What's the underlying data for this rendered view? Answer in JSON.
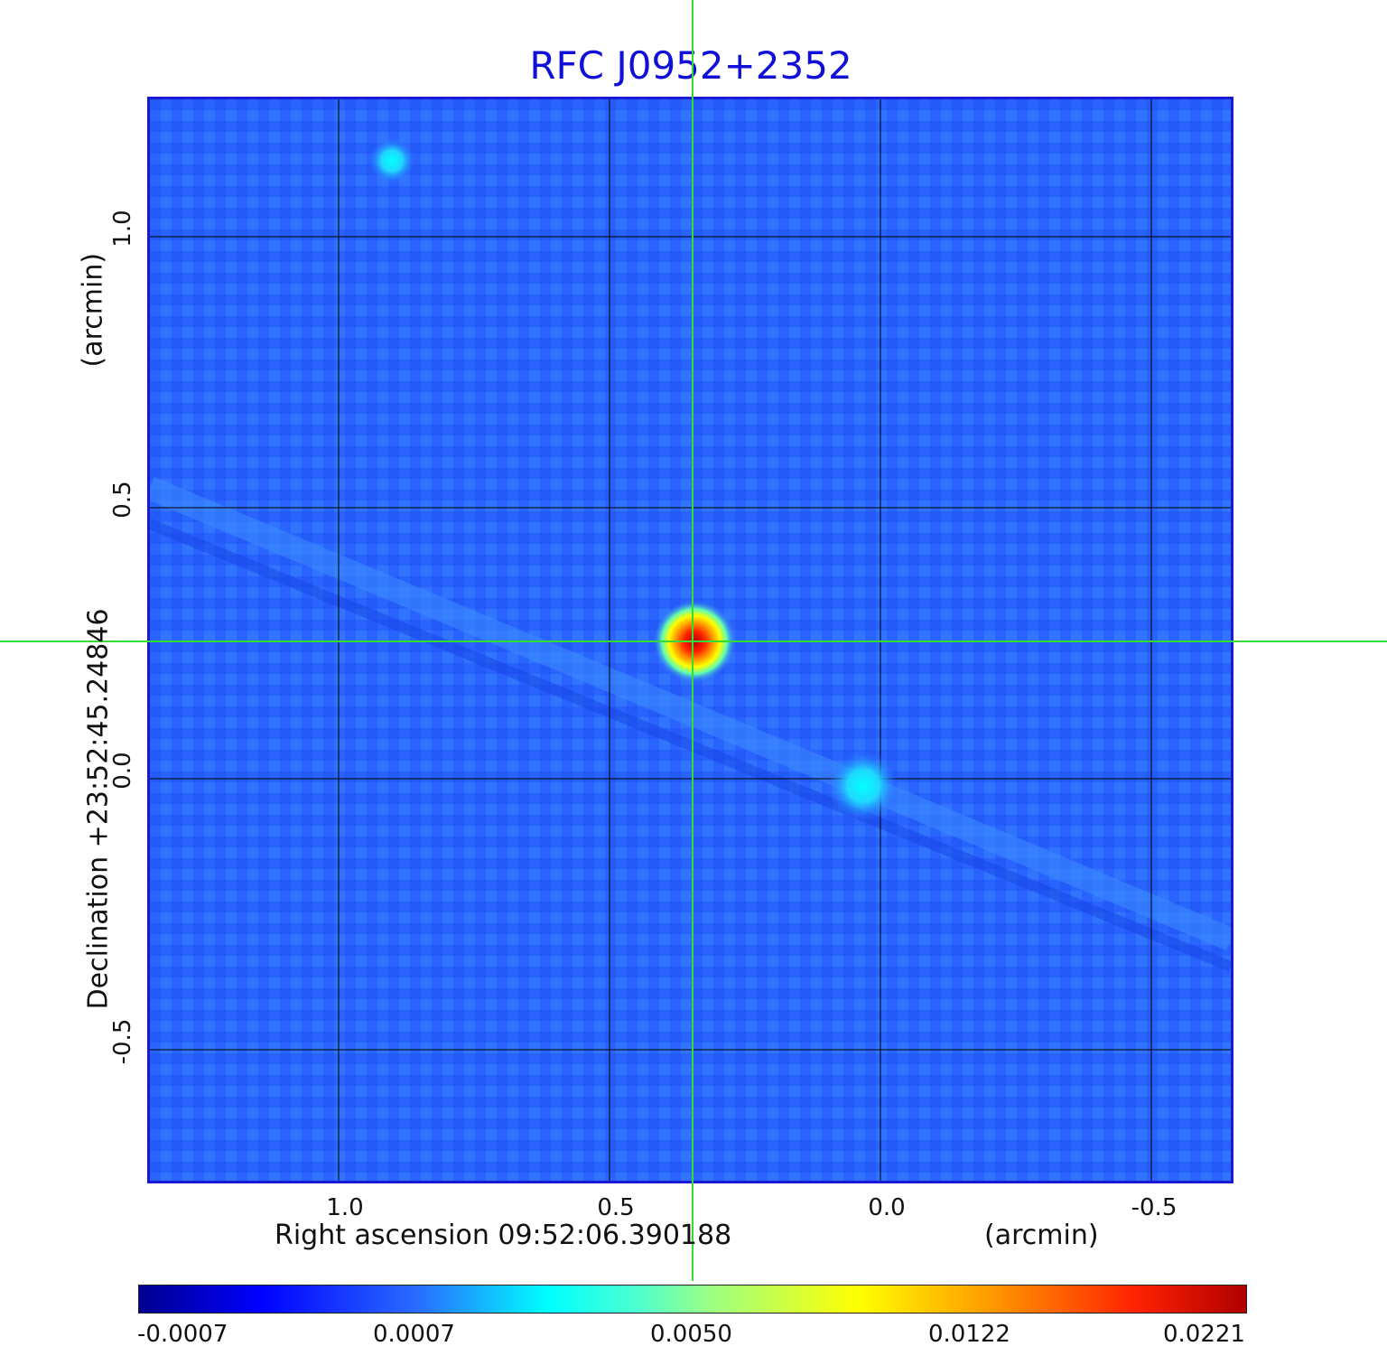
{
  "title": "RFC J0952+2352",
  "x_axis": {
    "label": "Right ascension  09:52:06.390188",
    "unit": "(arcmin)",
    "ticks": [
      "1.0",
      "0.5",
      "0.0",
      "-0.5"
    ]
  },
  "y_axis": {
    "label": "Declination  +23:52:45.24846",
    "unit": "(arcmin)",
    "ticks": [
      "1.0",
      "0.5",
      "0.0",
      "-0.5"
    ]
  },
  "colorbar": {
    "ticks": [
      "-0.0007",
      "0.0007",
      "0.0050",
      "0.0122",
      "0.0221"
    ],
    "colormap": "jet"
  },
  "colors": {
    "title": "#1010d8",
    "background_map": "#2a64ff",
    "crosshair": "#33dd33",
    "grid": "#000000"
  },
  "sources": [
    {
      "name": "central",
      "ra_offset_arcmin": 0.35,
      "dec_offset_arcmin": 0.25,
      "level": "0.0221"
    },
    {
      "name": "secondary",
      "ra_offset_arcmin": 0.04,
      "dec_offset_arcmin": -0.02,
      "level": "0.0050"
    },
    {
      "name": "upper-left",
      "ra_offset_arcmin": 0.92,
      "dec_offset_arcmin": 1.15,
      "level": "0.0050"
    }
  ]
}
